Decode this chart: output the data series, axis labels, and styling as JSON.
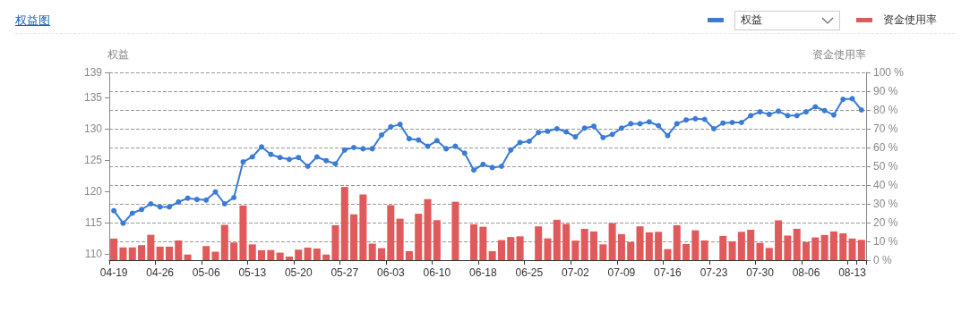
{
  "chart_data": {
    "type": "line",
    "title": "权益图",
    "ylabel": "权益",
    "y2label": "资金使用率",
    "legend": "top right",
    "grid": true,
    "marker": "circle",
    "line_style": "solid",
    "categories": [
      "04-19",
      null,
      null,
      null,
      null,
      "04-26",
      null,
      null,
      null,
      null,
      "05-06",
      null,
      null,
      null,
      null,
      "05-13",
      null,
      null,
      null,
      null,
      "05-20",
      null,
      null,
      null,
      null,
      "05-27",
      null,
      null,
      null,
      null,
      "06-03",
      null,
      null,
      null,
      null,
      "06-10",
      null,
      null,
      null,
      null,
      "06-18",
      null,
      null,
      null,
      null,
      "06-25",
      null,
      null,
      null,
      null,
      "07-02",
      null,
      null,
      null,
      null,
      "07-09",
      null,
      null,
      null,
      null,
      "07-16",
      null,
      null,
      null,
      null,
      "07-23",
      null,
      null,
      null,
      null,
      "07-30",
      null,
      null,
      null,
      null,
      "08-06",
      null,
      null,
      null,
      null,
      "08-13",
      null
    ],
    "ylim": [
      109,
      139
    ],
    "yticks": [
      110,
      115,
      120,
      125,
      130,
      135,
      139
    ],
    "y2lim": [
      0,
      100
    ],
    "y2ticks": [
      {
        "value": 0,
        "label": "0 %"
      },
      {
        "value": 10,
        "label": "10 %"
      },
      {
        "value": 20,
        "label": "20 %"
      },
      {
        "value": 30,
        "label": "30 %"
      },
      {
        "value": 40,
        "label": "40 %"
      },
      {
        "value": 50,
        "label": "50 %"
      },
      {
        "value": 60,
        "label": "60 %"
      },
      {
        "value": 70,
        "label": "70 %"
      },
      {
        "value": 80,
        "label": "80 %"
      },
      {
        "value": 90,
        "label": "90 %"
      },
      {
        "value": 100,
        "label": "100 %"
      }
    ],
    "series": [
      {
        "name": "权益",
        "color": "#3a7bd5",
        "values": [
          116.9,
          114.9,
          116.5,
          117.1,
          118.0,
          117.5,
          117.5,
          118.3,
          118.9,
          118.7,
          118.6,
          119.9,
          118.0,
          119.0,
          124.7,
          125.5,
          127.1,
          125.9,
          125.4,
          125.1,
          125.4,
          124.0,
          125.5,
          124.9,
          124.4,
          126.6,
          127.0,
          126.8,
          126.8,
          129.0,
          130.3,
          130.7,
          128.4,
          128.2,
          127.2,
          128.1,
          126.8,
          127.2,
          126.1,
          123.4,
          124.3,
          123.8,
          124.0,
          126.6,
          127.8,
          128.0,
          129.4,
          129.6,
          130.0,
          129.5,
          128.7,
          130.1,
          130.4,
          128.6,
          129.1,
          130.1,
          130.8,
          130.8,
          131.1,
          130.5,
          128.9,
          130.8,
          131.4,
          131.6,
          131.5,
          130.0,
          130.9,
          131.0,
          131.0,
          132.1,
          132.7,
          132.3,
          132.8,
          132.1,
          132.1,
          132.7,
          133.5,
          132.9,
          132.2,
          134.7,
          134.8,
          133.0
        ]
      },
      {
        "name": "资金使用率",
        "type": "bar",
        "axis": "y2",
        "color": "#e05a5c",
        "values": [
          11.5,
          6.8,
          6.8,
          8.0,
          13.5,
          7.2,
          7.2,
          10.5,
          3.0,
          null,
          7.5,
          4.5,
          18.8,
          9.4,
          29.1,
          8.4,
          5.3,
          5.4,
          4.0,
          1.9,
          5.6,
          6.7,
          6.2,
          3.0,
          18.6,
          39.0,
          24.4,
          35.0,
          8.8,
          6.4,
          29.3,
          22.1,
          4.8,
          24.7,
          32.5,
          21.3,
          null,
          31.1,
          null,
          19.1,
          17.8,
          4.8,
          10.7,
          12.3,
          12.7,
          null,
          18.0,
          11.6,
          21.5,
          19.3,
          10.4,
          16.7,
          15.3,
          8.4,
          19.7,
          13.9,
          9.7,
          18.0,
          14.8,
          15.1,
          5.9,
          18.6,
          8.6,
          15.9,
          10.5,
          null,
          12.9,
          10.0,
          15.1,
          16.2,
          9.2,
          6.5,
          21.2,
          13.1,
          16.7,
          9.7,
          12.1,
          13.4,
          15.3,
          14.3,
          11.5,
          10.8
        ]
      }
    ]
  }
}
